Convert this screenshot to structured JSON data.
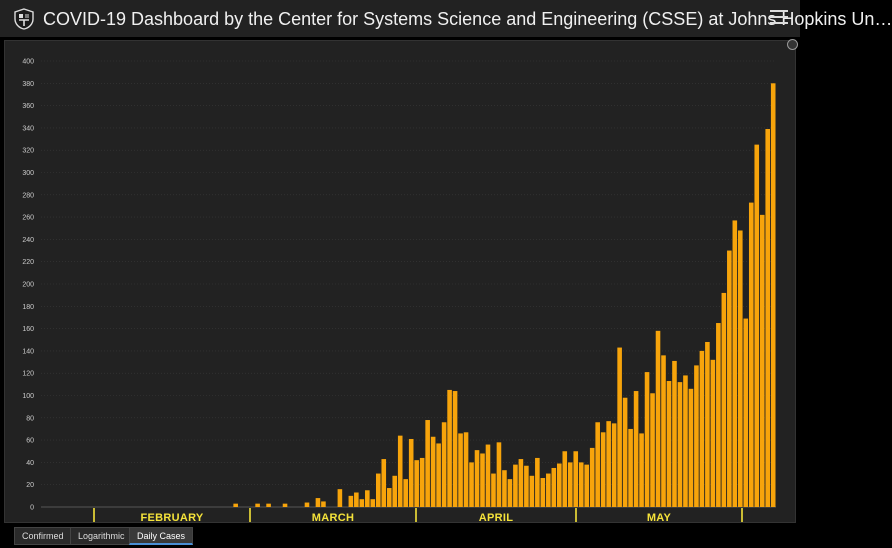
{
  "app": {
    "title": "COVID-19 Dashboard by the Center for Systems Science and Engineering (CSSE) at Johns Hopkins Un…"
  },
  "tabs": [
    {
      "label": "Confirmed",
      "active": false
    },
    {
      "label": "Logarithmic",
      "active": false
    },
    {
      "label": "Daily Cases",
      "active": true
    }
  ],
  "chart_data": {
    "type": "bar",
    "bar_color": "#f7a40b",
    "background": "#222222",
    "grid": true,
    "ylim": [
      0,
      400
    ],
    "yticks": [
      0,
      20,
      40,
      60,
      80,
      100,
      120,
      140,
      160,
      180,
      200,
      220,
      240,
      260,
      280,
      300,
      320,
      340,
      360,
      380,
      400
    ],
    "months": [
      "FEBRUARY",
      "MARCH",
      "APRIL",
      "MAY"
    ],
    "values": [
      0,
      0,
      0,
      0,
      0,
      0,
      0,
      0,
      0,
      0,
      0,
      0,
      0,
      0,
      0,
      0,
      0,
      0,
      0,
      0,
      0,
      0,
      0,
      0,
      0,
      0,
      0,
      0,
      0,
      0,
      0,
      0,
      0,
      0,
      0,
      3,
      0,
      0,
      0,
      3,
      0,
      3,
      0,
      0,
      3,
      0,
      0,
      0,
      4,
      0,
      8,
      5,
      0,
      0,
      16,
      0,
      10,
      13,
      7,
      15,
      7,
      30,
      43,
      17,
      28,
      64,
      25,
      61,
      42,
      44,
      78,
      63,
      57,
      76,
      105,
      104,
      66,
      67,
      40,
      51,
      48,
      56,
      30,
      58,
      33,
      25,
      38,
      43,
      37,
      28,
      44,
      26,
      30,
      35,
      39,
      50,
      40,
      50,
      40,
      38,
      53,
      76,
      67,
      77,
      75,
      143,
      98,
      70,
      104,
      66,
      121,
      102,
      158,
      136,
      113,
      131,
      112,
      118,
      106,
      127,
      140,
      148,
      132,
      165,
      192,
      230,
      257,
      248,
      169,
      273,
      325,
      262,
      339,
      380
    ]
  }
}
